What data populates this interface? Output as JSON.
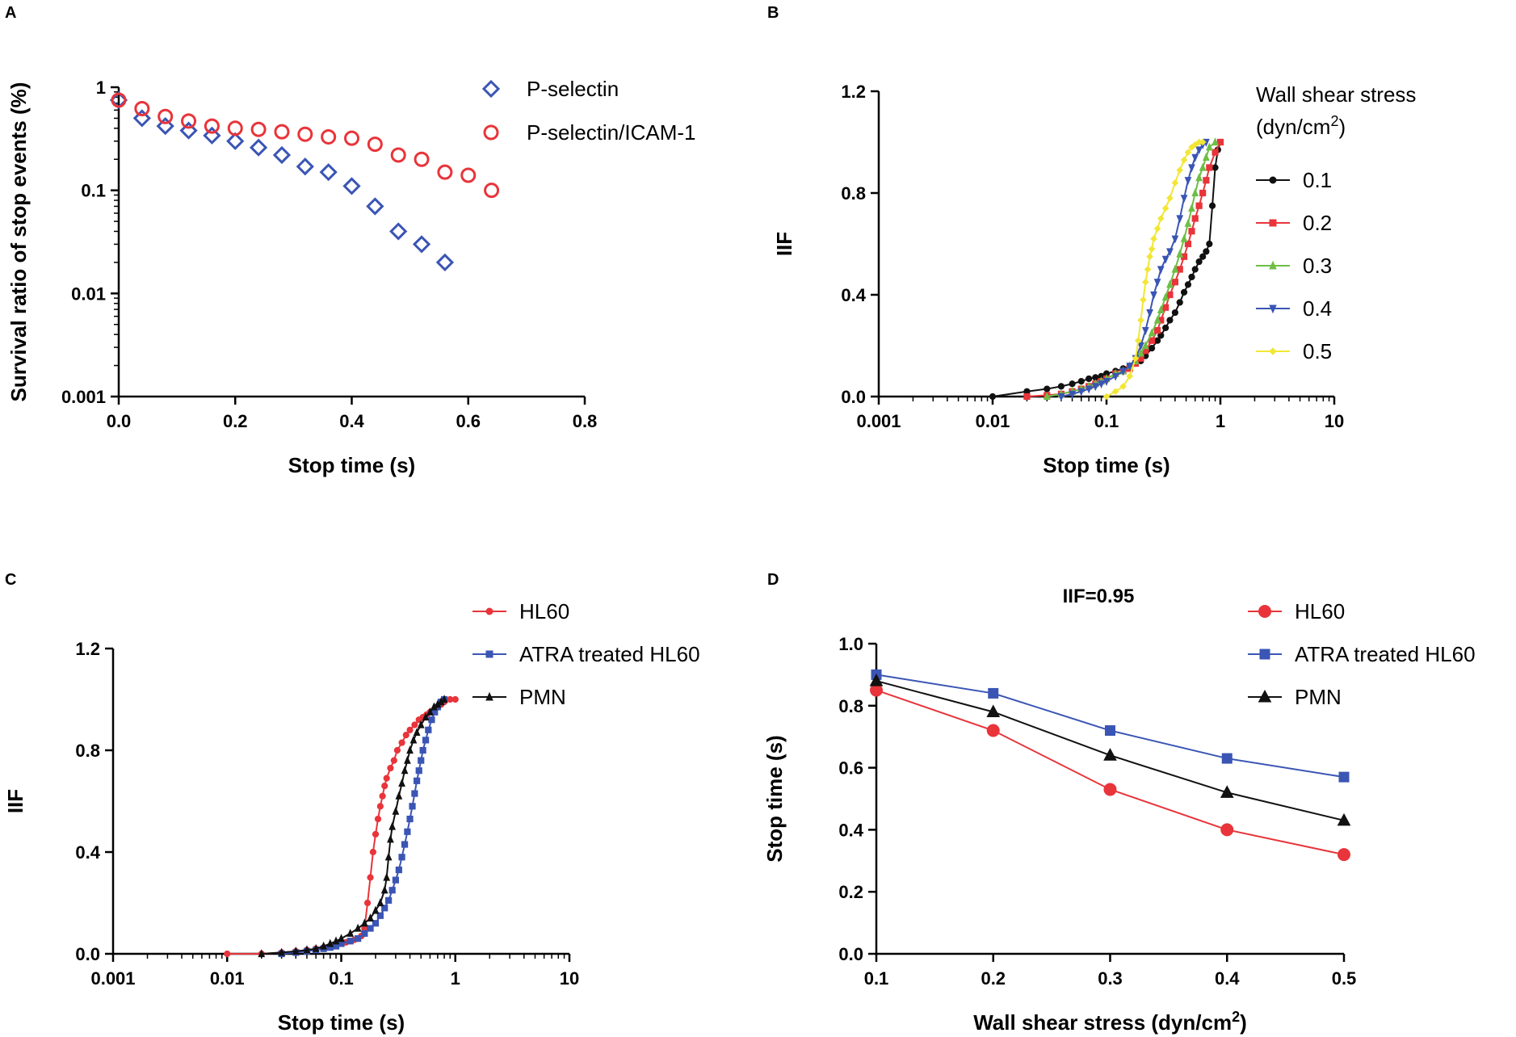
{
  "panel_letters": [
    "A",
    "B",
    "C",
    "D"
  ],
  "chart_data": [
    {
      "panel": "A",
      "type": "scatter",
      "xlabel": "Stop time (s)",
      "ylabel": "Survival ratio of stop events (%)",
      "xscale": "linear",
      "yscale": "log",
      "xlim": [
        0,
        0.8
      ],
      "ylim": [
        0.001,
        1
      ],
      "xticks": [
        0,
        0.2,
        0.4,
        0.6,
        0.8
      ],
      "xtick_labels": [
        "0.0",
        "0.2",
        "0.4",
        "0.6",
        "0.8"
      ],
      "yticks": [
        0.001,
        0.01,
        0.1,
        1
      ],
      "ytick_labels": [
        "0.001",
        "0.01",
        "0.1",
        "1"
      ],
      "legend_position": "top-right",
      "series": [
        {
          "name": "P-selectin",
          "color": "#3a55b4",
          "marker": "diamond-open",
          "x": [
            0,
            0.04,
            0.08,
            0.12,
            0.16,
            0.2,
            0.24,
            0.28,
            0.32,
            0.36,
            0.4,
            0.44,
            0.48,
            0.52,
            0.56
          ],
          "y": [
            0.75,
            0.5,
            0.42,
            0.38,
            0.34,
            0.3,
            0.26,
            0.22,
            0.17,
            0.15,
            0.11,
            0.07,
            0.04,
            0.03,
            0.02
          ]
        },
        {
          "name": "P-selectin/ICAM-1",
          "color": "#e8343a",
          "marker": "circle-open",
          "x": [
            0,
            0.04,
            0.08,
            0.12,
            0.16,
            0.2,
            0.24,
            0.28,
            0.32,
            0.36,
            0.4,
            0.44,
            0.48,
            0.52,
            0.56,
            0.6,
            0.64
          ],
          "y": [
            0.75,
            0.62,
            0.52,
            0.47,
            0.42,
            0.4,
            0.39,
            0.37,
            0.35,
            0.33,
            0.32,
            0.28,
            0.22,
            0.2,
            0.15,
            0.14,
            0.1
          ]
        }
      ]
    },
    {
      "panel": "B",
      "type": "line",
      "xlabel": "Stop time (s)",
      "ylabel": "IIF",
      "xscale": "log",
      "yscale": "linear",
      "xlim": [
        0.001,
        10
      ],
      "ylim": [
        0,
        1.2
      ],
      "xticks": [
        0.001,
        0.01,
        0.1,
        1,
        10
      ],
      "xtick_labels": [
        "0.001",
        "0.01",
        "0.1",
        "1",
        "10"
      ],
      "yticks": [
        0,
        0.4,
        0.8,
        1.2
      ],
      "ytick_labels": [
        "0.0",
        "0.4",
        "0.8",
        "1.2"
      ],
      "legend_title": "Wall shear stress",
      "legend_title_unit": "(dyn/cm",
      "legend_title_sup": "2",
      "legend_title_close": ")",
      "legend_position": "right",
      "series": [
        {
          "name": "0.1",
          "color": "#111111",
          "marker": "circle",
          "x": [
            0.01,
            0.02,
            0.03,
            0.04,
            0.05,
            0.06,
            0.07,
            0.08,
            0.09,
            0.1,
            0.12,
            0.14,
            0.16,
            0.18,
            0.2,
            0.22,
            0.25,
            0.28,
            0.3,
            0.33,
            0.36,
            0.4,
            0.44,
            0.48,
            0.52,
            0.56,
            0.6,
            0.65,
            0.7,
            0.75,
            0.8,
            0.85,
            0.9,
            0.95,
            1.0
          ],
          "y": [
            0.0,
            0.02,
            0.03,
            0.04,
            0.05,
            0.06,
            0.07,
            0.075,
            0.08,
            0.09,
            0.1,
            0.11,
            0.12,
            0.13,
            0.14,
            0.16,
            0.19,
            0.22,
            0.24,
            0.27,
            0.3,
            0.33,
            0.37,
            0.41,
            0.44,
            0.47,
            0.5,
            0.53,
            0.55,
            0.57,
            0.6,
            0.75,
            0.9,
            0.97,
            1.0
          ]
        },
        {
          "name": "0.2",
          "color": "#e8343a",
          "marker": "square",
          "x": [
            0.02,
            0.03,
            0.04,
            0.05,
            0.06,
            0.07,
            0.08,
            0.09,
            0.1,
            0.12,
            0.14,
            0.16,
            0.18,
            0.2,
            0.22,
            0.25,
            0.28,
            0.3,
            0.33,
            0.36,
            0.4,
            0.44,
            0.48,
            0.52,
            0.56,
            0.6,
            0.65,
            0.7,
            0.75,
            0.8,
            0.9,
            1.0
          ],
          "y": [
            0.0,
            0.005,
            0.01,
            0.02,
            0.03,
            0.04,
            0.05,
            0.06,
            0.07,
            0.09,
            0.1,
            0.11,
            0.13,
            0.15,
            0.18,
            0.22,
            0.26,
            0.3,
            0.35,
            0.4,
            0.45,
            0.5,
            0.55,
            0.6,
            0.65,
            0.7,
            0.75,
            0.8,
            0.85,
            0.9,
            0.96,
            1.0
          ]
        },
        {
          "name": "0.3",
          "color": "#6dbe45",
          "marker": "triangle-up",
          "x": [
            0.03,
            0.04,
            0.05,
            0.06,
            0.07,
            0.08,
            0.09,
            0.1,
            0.12,
            0.14,
            0.16,
            0.18,
            0.2,
            0.22,
            0.25,
            0.28,
            0.3,
            0.33,
            0.36,
            0.4,
            0.44,
            0.48,
            0.52,
            0.56,
            0.6,
            0.65,
            0.7,
            0.75,
            0.8,
            0.9
          ],
          "y": [
            0.0,
            0.01,
            0.02,
            0.03,
            0.04,
            0.05,
            0.06,
            0.07,
            0.09,
            0.1,
            0.12,
            0.14,
            0.17,
            0.2,
            0.25,
            0.3,
            0.34,
            0.39,
            0.44,
            0.5,
            0.56,
            0.62,
            0.68,
            0.74,
            0.8,
            0.86,
            0.9,
            0.94,
            0.98,
            1.0
          ]
        },
        {
          "name": "0.4",
          "color": "#3a55b4",
          "marker": "triangle-down",
          "x": [
            0.04,
            0.05,
            0.06,
            0.07,
            0.08,
            0.09,
            0.1,
            0.12,
            0.14,
            0.16,
            0.18,
            0.2,
            0.22,
            0.24,
            0.26,
            0.28,
            0.3,
            0.33,
            0.36,
            0.4,
            0.44,
            0.48,
            0.52,
            0.56,
            0.6,
            0.65,
            0.7,
            0.75
          ],
          "y": [
            0.0,
            0.01,
            0.02,
            0.03,
            0.04,
            0.05,
            0.06,
            0.08,
            0.1,
            0.12,
            0.15,
            0.2,
            0.26,
            0.33,
            0.4,
            0.45,
            0.5,
            0.54,
            0.57,
            0.62,
            0.7,
            0.78,
            0.85,
            0.9,
            0.94,
            0.97,
            0.99,
            1.0
          ]
        },
        {
          "name": "0.5",
          "color": "#f2e634",
          "marker": "diamond",
          "x": [
            0.1,
            0.12,
            0.14,
            0.16,
            0.18,
            0.19,
            0.2,
            0.21,
            0.22,
            0.23,
            0.24,
            0.25,
            0.26,
            0.28,
            0.3,
            0.33,
            0.36,
            0.4,
            0.44,
            0.48,
            0.52,
            0.56,
            0.6,
            0.65,
            0.7
          ],
          "y": [
            0.0,
            0.02,
            0.04,
            0.08,
            0.15,
            0.22,
            0.3,
            0.38,
            0.45,
            0.5,
            0.55,
            0.58,
            0.62,
            0.66,
            0.7,
            0.74,
            0.78,
            0.84,
            0.89,
            0.93,
            0.96,
            0.98,
            0.99,
            1.0,
            1.0
          ]
        }
      ]
    },
    {
      "panel": "C",
      "type": "line",
      "xlabel": "Stop time (s)",
      "ylabel": "IIF",
      "xscale": "log",
      "yscale": "linear",
      "xlim": [
        0.001,
        10
      ],
      "ylim": [
        0,
        1.2
      ],
      "xticks": [
        0.001,
        0.01,
        0.1,
        1,
        10
      ],
      "xtick_labels": [
        "0.001",
        "0.01",
        "0.1",
        "1",
        "10"
      ],
      "yticks": [
        0,
        0.4,
        0.8,
        1.2
      ],
      "ytick_labels": [
        "0.0",
        "0.4",
        "0.8",
        "1.2"
      ],
      "legend_position": "top-right",
      "series": [
        {
          "name": "HL60",
          "color": "#e8343a",
          "marker": "circle",
          "x": [
            0.01,
            0.02,
            0.03,
            0.04,
            0.05,
            0.06,
            0.07,
            0.08,
            0.09,
            0.1,
            0.11,
            0.12,
            0.13,
            0.14,
            0.15,
            0.16,
            0.17,
            0.18,
            0.19,
            0.2,
            0.21,
            0.22,
            0.23,
            0.24,
            0.25,
            0.27,
            0.29,
            0.31,
            0.34,
            0.37,
            0.4,
            0.44,
            0.48,
            0.52,
            0.56,
            0.6,
            0.65,
            0.7,
            0.75,
            0.8,
            0.9,
            1.0
          ],
          "y": [
            0.0,
            0.0,
            0.005,
            0.01,
            0.015,
            0.02,
            0.025,
            0.03,
            0.035,
            0.04,
            0.045,
            0.05,
            0.055,
            0.06,
            0.07,
            0.1,
            0.2,
            0.3,
            0.4,
            0.47,
            0.53,
            0.58,
            0.62,
            0.66,
            0.69,
            0.73,
            0.76,
            0.8,
            0.83,
            0.86,
            0.88,
            0.9,
            0.92,
            0.93,
            0.94,
            0.95,
            0.96,
            0.97,
            0.98,
            0.99,
            1.0,
            1.0
          ]
        },
        {
          "name": "ATRA treated HL60",
          "color": "#3a55b4",
          "marker": "square",
          "x": [
            0.03,
            0.04,
            0.05,
            0.06,
            0.07,
            0.08,
            0.09,
            0.1,
            0.12,
            0.14,
            0.16,
            0.18,
            0.2,
            0.22,
            0.24,
            0.26,
            0.28,
            0.3,
            0.32,
            0.34,
            0.36,
            0.38,
            0.4,
            0.42,
            0.44,
            0.46,
            0.48,
            0.5,
            0.52,
            0.55,
            0.58,
            0.62,
            0.66,
            0.7,
            0.75,
            0.8
          ],
          "y": [
            0.0,
            0.005,
            0.01,
            0.015,
            0.02,
            0.025,
            0.03,
            0.04,
            0.05,
            0.06,
            0.08,
            0.1,
            0.12,
            0.15,
            0.18,
            0.21,
            0.25,
            0.29,
            0.33,
            0.38,
            0.43,
            0.48,
            0.53,
            0.58,
            0.63,
            0.68,
            0.72,
            0.76,
            0.8,
            0.84,
            0.88,
            0.92,
            0.95,
            0.97,
            0.99,
            1.0
          ]
        },
        {
          "name": "PMN",
          "color": "#111111",
          "marker": "triangle-up",
          "x": [
            0.02,
            0.03,
            0.04,
            0.05,
            0.06,
            0.07,
            0.08,
            0.09,
            0.1,
            0.12,
            0.14,
            0.16,
            0.18,
            0.2,
            0.22,
            0.24,
            0.25,
            0.26,
            0.27,
            0.28,
            0.3,
            0.32,
            0.34,
            0.36,
            0.38,
            0.4,
            0.43,
            0.46,
            0.5,
            0.55,
            0.6,
            0.65,
            0.7,
            0.75,
            0.8
          ],
          "y": [
            0.0,
            0.005,
            0.01,
            0.015,
            0.02,
            0.03,
            0.04,
            0.05,
            0.06,
            0.08,
            0.1,
            0.12,
            0.14,
            0.17,
            0.2,
            0.25,
            0.3,
            0.38,
            0.45,
            0.5,
            0.56,
            0.62,
            0.67,
            0.72,
            0.76,
            0.8,
            0.84,
            0.87,
            0.9,
            0.93,
            0.95,
            0.97,
            0.98,
            0.99,
            1.0
          ]
        }
      ]
    },
    {
      "panel": "D",
      "type": "line",
      "title": "IIF=0.95",
      "xlabel": "Wall shear stress (dyn/cm",
      "xlabel_sup": "2",
      "xlabel_close": ")",
      "ylabel": "Stop time (s)",
      "xscale": "linear",
      "yscale": "linear",
      "xlim": [
        0.1,
        0.5
      ],
      "ylim": [
        0,
        1.0
      ],
      "xticks": [
        0.1,
        0.2,
        0.3,
        0.4,
        0.5
      ],
      "xtick_labels": [
        "0.1",
        "0.2",
        "0.3",
        "0.4",
        "0.5"
      ],
      "yticks": [
        0,
        0.2,
        0.4,
        0.6,
        0.8,
        1.0
      ],
      "ytick_labels": [
        "0.0",
        "0.2",
        "0.4",
        "0.6",
        "0.8",
        "1.0"
      ],
      "legend_position": "top-right",
      "categories": [
        0.1,
        0.2,
        0.3,
        0.4,
        0.5
      ],
      "series": [
        {
          "name": "HL60",
          "color": "#e8343a",
          "marker": "circle-large",
          "values": [
            0.85,
            0.72,
            0.53,
            0.4,
            0.32
          ]
        },
        {
          "name": "ATRA treated HL60",
          "color": "#3a55b4",
          "marker": "square",
          "values": [
            0.9,
            0.84,
            0.72,
            0.63,
            0.57
          ]
        },
        {
          "name": "PMN",
          "color": "#111111",
          "marker": "triangle-up-large",
          "values": [
            0.88,
            0.78,
            0.64,
            0.52,
            0.43
          ]
        }
      ]
    }
  ]
}
